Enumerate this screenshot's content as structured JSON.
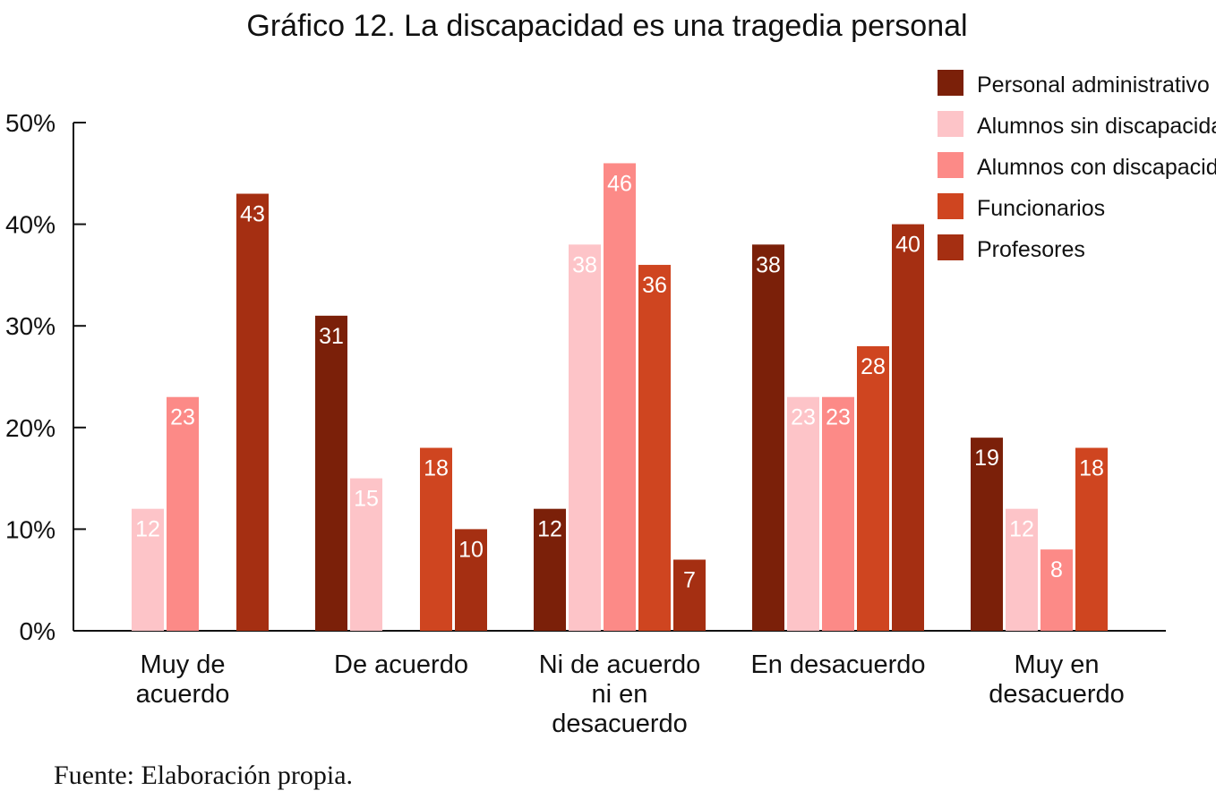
{
  "chart_data": {
    "type": "bar",
    "title": "Gráfico 12. La discapacidad es una tragedia personal",
    "xlabel": "",
    "ylabel": "",
    "ylim": [
      0,
      50
    ],
    "yticks": [
      "0%",
      "10%",
      "20%",
      "30%",
      "40%",
      "50%"
    ],
    "grid": false,
    "legend_position": "top-right",
    "categories": [
      [
        "Muy de",
        "acuerdo"
      ],
      [
        "De acuerdo"
      ],
      [
        "Ni de acuerdo",
        "ni en",
        "desacuerdo"
      ],
      [
        "En desacuerdo"
      ],
      [
        "Muy en",
        "desacuerdo"
      ]
    ],
    "series": [
      {
        "name": "Personal administrativo",
        "color": "#7B2009",
        "values": [
          null,
          31,
          12,
          38,
          19
        ]
      },
      {
        "name": "Alumnos sin discapacidad",
        "color": "#FDC4C8",
        "values": [
          12,
          15,
          38,
          23,
          12
        ]
      },
      {
        "name": "Alumnos con discapacidad",
        "color": "#FC8A87",
        "values": [
          23,
          null,
          46,
          23,
          8
        ]
      },
      {
        "name": "Funcionarios",
        "color": "#CF4520",
        "values": [
          null,
          18,
          36,
          28,
          18
        ]
      },
      {
        "name": "Profesores",
        "color": "#A52F12",
        "values": [
          43,
          10,
          7,
          40,
          null
        ]
      }
    ]
  },
  "source": "Fuente: Elaboración propia."
}
